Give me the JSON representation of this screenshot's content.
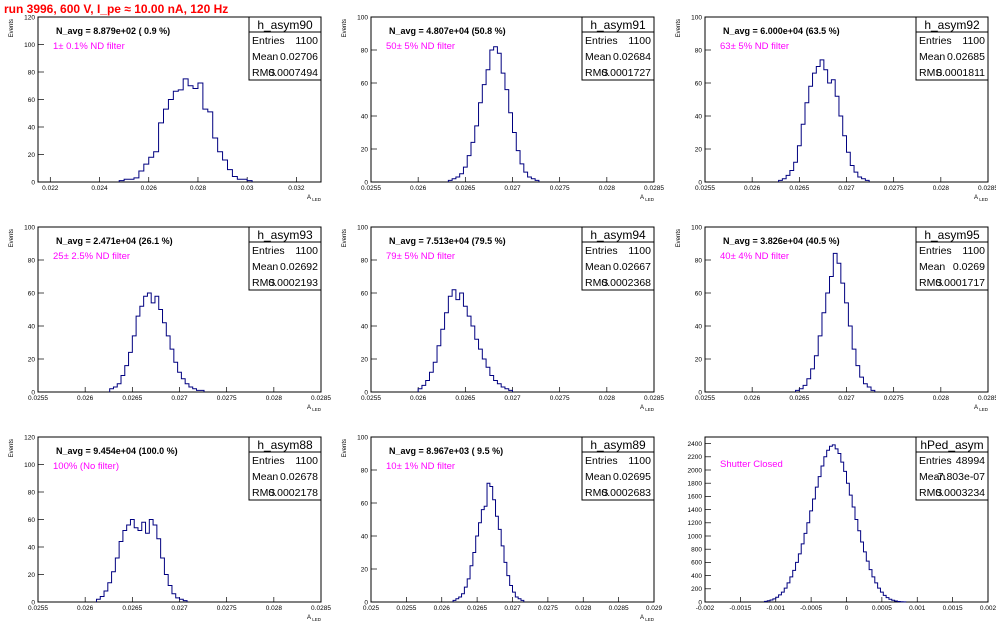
{
  "page": {
    "title": "run 3996,   600 V, I_pe ≈ 10.00 nA, 120 Hz"
  },
  "stat_labels": {
    "entries": "Entries",
    "mean": "Mean",
    "rms": "RMS"
  },
  "colors": {
    "histogram": "#000080",
    "annotation": "#ff00ff",
    "title": "#ff0000",
    "frame": "#000000"
  },
  "chart_data": [
    {
      "type": "bar",
      "name": "h_asym90",
      "title": "h_asym90",
      "entries": "1100",
      "mean": "0.02706",
      "rms": "0.0007494",
      "n_avg": "N_avg = 8.879e+02 ( 0.9 %)",
      "annotation": "1± 0.1% ND filter",
      "xlabel": "A_LED",
      "ylabel": "Events",
      "xlim": [
        0.0215,
        0.033
      ],
      "ylim": [
        0,
        120
      ],
      "xticks": [
        0.022,
        0.024,
        0.026,
        0.028,
        0.03,
        0.032
      ],
      "xtick_labels": [
        "0.022",
        "0.024",
        "0.026",
        "0.028",
        "0.03",
        "0.032"
      ],
      "yticks": [
        0,
        20,
        40,
        60,
        80,
        100,
        120
      ],
      "ytick_labels": [
        "0",
        "20",
        "40",
        "60",
        "80",
        "100",
        "120"
      ],
      "bin_start": 0.0248,
      "bin_width": 0.0002,
      "values": [
        1,
        2,
        2,
        3,
        8,
        13,
        18,
        22,
        43,
        53,
        60,
        66,
        67,
        75,
        70,
        68,
        72,
        53,
        51,
        32,
        22,
        16,
        9,
        4,
        2,
        2,
        1
      ]
    },
    {
      "type": "bar",
      "name": "h_asym91",
      "title": "h_asym91",
      "entries": "1100",
      "mean": "0.02684",
      "rms": "0.0001727",
      "n_avg": "N_avg = 4.807e+04 (50.8 %)",
      "annotation": "50± 5% ND filter",
      "xlabel": "A_LED",
      "ylabel": "Events",
      "xlim": [
        0.0255,
        0.0285
      ],
      "ylim": [
        0,
        100
      ],
      "xticks": [
        0.0255,
        0.026,
        0.0265,
        0.027,
        0.0275,
        0.028,
        0.0285
      ],
      "xtick_labels": [
        "0.0255",
        "0.026",
        "0.0265",
        "0.027",
        "0.0275",
        "0.028",
        "0.0285"
      ],
      "yticks": [
        0,
        20,
        40,
        60,
        80,
        100
      ],
      "ytick_labels": [
        "0",
        "20",
        "40",
        "60",
        "80",
        "100"
      ],
      "bin_start": 0.02632,
      "bin_width": 4e-05,
      "values": [
        1,
        2,
        3,
        5,
        9,
        16,
        24,
        34,
        48,
        59,
        68,
        80,
        82,
        78,
        66,
        56,
        42,
        30,
        19,
        11,
        6,
        3,
        2,
        1
      ]
    },
    {
      "type": "bar",
      "name": "h_asym92",
      "title": "h_asym92",
      "entries": "1100",
      "mean": "0.02685",
      "rms": "0.0001811",
      "n_avg": "N_avg = 6.000e+04 (63.5 %)",
      "annotation": "63± 5% ND filter",
      "xlabel": "A_LED",
      "ylabel": "Events",
      "xlim": [
        0.0255,
        0.0285
      ],
      "ylim": [
        0,
        100
      ],
      "xticks": [
        0.0255,
        0.026,
        0.0265,
        0.027,
        0.0275,
        0.028,
        0.0285
      ],
      "xtick_labels": [
        "0.0255",
        "0.026",
        "0.0265",
        "0.027",
        "0.0275",
        "0.028",
        "0.0285"
      ],
      "yticks": [
        0,
        20,
        40,
        60,
        80,
        100
      ],
      "ytick_labels": [
        "0",
        "20",
        "40",
        "60",
        "80",
        "100"
      ],
      "bin_start": 0.02628,
      "bin_width": 4e-05,
      "values": [
        1,
        2,
        4,
        7,
        12,
        22,
        35,
        48,
        58,
        66,
        70,
        74,
        68,
        60,
        62,
        52,
        40,
        28,
        18,
        10,
        6,
        3,
        2,
        1
      ]
    },
    {
      "type": "bar",
      "name": "h_asym93",
      "title": "h_asym93",
      "entries": "1100",
      "mean": "0.02692",
      "rms": "0.0002193",
      "n_avg": "N_avg = 2.471e+04 (26.1 %)",
      "annotation": "25± 2.5% ND filter",
      "xlabel": "A_LED",
      "ylabel": "Events",
      "xlim": [
        0.0255,
        0.0285
      ],
      "ylim": [
        0,
        100
      ],
      "xticks": [
        0.0255,
        0.026,
        0.0265,
        0.027,
        0.0275,
        0.028,
        0.0285
      ],
      "xtick_labels": [
        "0.0255",
        "0.026",
        "0.0265",
        "0.027",
        "0.0275",
        "0.028",
        "0.0285"
      ],
      "yticks": [
        0,
        20,
        40,
        60,
        80,
        100
      ],
      "ytick_labels": [
        "0",
        "20",
        "40",
        "60",
        "80",
        "100"
      ],
      "bin_start": 0.02626,
      "bin_width": 4e-05,
      "values": [
        2,
        3,
        5,
        10,
        16,
        24,
        34,
        46,
        52,
        58,
        60,
        54,
        58,
        50,
        42,
        34,
        26,
        18,
        12,
        8,
        5,
        3,
        2,
        1,
        1
      ]
    },
    {
      "type": "bar",
      "name": "h_asym94",
      "title": "h_asym94",
      "entries": "1100",
      "mean": "0.02667",
      "rms": "0.0002368",
      "n_avg": "N_avg = 7.513e+04 (79.5 %)",
      "annotation": "79± 5% ND filter",
      "xlabel": "A_LED",
      "ylabel": "Events",
      "xlim": [
        0.0255,
        0.0285
      ],
      "ylim": [
        0,
        100
      ],
      "xticks": [
        0.0255,
        0.026,
        0.0265,
        0.027,
        0.0275,
        0.028,
        0.0285
      ],
      "xtick_labels": [
        "0.0255",
        "0.026",
        "0.0265",
        "0.027",
        "0.0275",
        "0.028",
        "0.0285"
      ],
      "yticks": [
        0,
        20,
        40,
        60,
        80,
        100
      ],
      "ytick_labels": [
        "0",
        "20",
        "40",
        "60",
        "80",
        "100"
      ],
      "bin_start": 0.026,
      "bin_width": 4e-05,
      "values": [
        2,
        4,
        7,
        12,
        18,
        28,
        38,
        48,
        58,
        62,
        56,
        60,
        52,
        46,
        40,
        32,
        26,
        20,
        15,
        10,
        7,
        5,
        3,
        2,
        1
      ]
    },
    {
      "type": "bar",
      "name": "h_asym95",
      "title": "h_asym95",
      "entries": "1100",
      "mean": "0.0269",
      "rms": "0.0001717",
      "n_avg": "N_avg = 3.826e+04 (40.5 %)",
      "annotation": "40± 4% ND filter",
      "xlabel": "A_LED",
      "ylabel": "Events",
      "xlim": [
        0.0255,
        0.0285
      ],
      "ylim": [
        0,
        100
      ],
      "xticks": [
        0.0255,
        0.026,
        0.0265,
        0.027,
        0.0275,
        0.028,
        0.0285
      ],
      "xtick_labels": [
        "0.0255",
        "0.026",
        "0.0265",
        "0.027",
        "0.0275",
        "0.028",
        "0.0285"
      ],
      "yticks": [
        0,
        20,
        40,
        60,
        80,
        100
      ],
      "ytick_labels": [
        "0",
        "20",
        "40",
        "60",
        "80",
        "100"
      ],
      "bin_start": 0.02646,
      "bin_width": 4e-05,
      "values": [
        1,
        2,
        4,
        8,
        14,
        22,
        34,
        48,
        60,
        70,
        84,
        78,
        66,
        54,
        40,
        26,
        16,
        9,
        5,
        3,
        1
      ]
    },
    {
      "type": "bar",
      "name": "h_asym88",
      "title": "h_asym88",
      "entries": "1100",
      "mean": "0.02678",
      "rms": "0.0002178",
      "n_avg": "N_avg = 9.454e+04 (100.0 %)",
      "annotation": "100% (No filter)",
      "xlabel": "A_LED",
      "ylabel": "Events",
      "xlim": [
        0.0255,
        0.0285
      ],
      "ylim": [
        0,
        120
      ],
      "xticks": [
        0.0255,
        0.026,
        0.0265,
        0.027,
        0.0275,
        0.028,
        0.0285
      ],
      "xtick_labels": [
        "0.0255",
        "0.026",
        "0.0265",
        "0.027",
        "0.0275",
        "0.028",
        "0.0285"
      ],
      "yticks": [
        0,
        20,
        40,
        60,
        80,
        100,
        120
      ],
      "ytick_labels": [
        "0",
        "20",
        "40",
        "60",
        "80",
        "100",
        "120"
      ],
      "bin_start": 0.02612,
      "bin_width": 4e-05,
      "values": [
        2,
        4,
        8,
        14,
        22,
        32,
        44,
        52,
        56,
        60,
        54,
        52,
        58,
        50,
        60,
        56,
        46,
        32,
        20,
        12,
        6,
        3,
        2,
        1
      ]
    },
    {
      "type": "bar",
      "name": "h_asym89",
      "title": "h_asym89",
      "entries": "1100",
      "mean": "0.02695",
      "rms": "0.0002683",
      "n_avg": "N_avg = 8.967e+03 ( 9.5 %)",
      "annotation": "10± 1% ND filter",
      "xlabel": "A_LED",
      "ylabel": "Events",
      "xlim": [
        0.025,
        0.029
      ],
      "ylim": [
        0,
        100
      ],
      "xticks": [
        0.025,
        0.0255,
        0.026,
        0.0265,
        0.027,
        0.0275,
        0.028,
        0.0285,
        0.029
      ],
      "xtick_labels": [
        "0.025",
        "0.0255",
        "0.026",
        "0.0265",
        "0.027",
        "0.0275",
        "0.028",
        "0.0285",
        "0.029"
      ],
      "yticks": [
        0,
        20,
        40,
        60,
        80,
        100
      ],
      "ytick_labels": [
        "0",
        "20",
        "40",
        "60",
        "80",
        "100"
      ],
      "bin_start": 0.02616,
      "bin_width": 4e-05,
      "values": [
        1,
        2,
        3,
        5,
        9,
        14,
        22,
        30,
        40,
        48,
        56,
        58,
        72,
        70,
        62,
        52,
        44,
        34,
        24,
        16,
        10,
        6,
        3,
        2,
        1
      ]
    },
    {
      "type": "bar",
      "name": "hPed_asym",
      "title": "hPed_asym",
      "entries": "48994",
      "mean": "-7.803e-07",
      "rms": "0.0003234",
      "n_avg": "",
      "annotation": "Shutter Closed",
      "xlabel": "",
      "ylabel": "",
      "xlim": [
        -0.002,
        0.002
      ],
      "ylim": [
        0,
        2500
      ],
      "xticks": [
        -0.002,
        -0.0015,
        -0.001,
        -0.0005,
        0,
        0.0005,
        0.001,
        0.0015,
        0.002
      ],
      "xtick_labels": [
        "-0.002",
        "-0.0015",
        "-0.001",
        "-0.0005",
        "0",
        "0.0005",
        "0.001",
        "0.0015",
        "0.002"
      ],
      "yticks": [
        0,
        200,
        400,
        600,
        800,
        1000,
        1200,
        1400,
        1600,
        1800,
        2000,
        2200,
        2400
      ],
      "ytick_labels": [
        "0",
        "200",
        "400",
        "600",
        "800",
        "1000",
        "1200",
        "1400",
        "1600",
        "1800",
        "2000",
        "2200",
        "2400"
      ],
      "bin_start": -0.00116,
      "bin_width": 4e-05,
      "values": [
        10,
        18,
        30,
        48,
        72,
        108,
        150,
        210,
        290,
        380,
        480,
        600,
        730,
        880,
        1040,
        1200,
        1380,
        1560,
        1740,
        1900,
        2060,
        2200,
        2300,
        2360,
        2380,
        2320,
        2250,
        2120,
        1980,
        1800,
        1620,
        1440,
        1250,
        1080,
        910,
        760,
        620,
        490,
        380,
        290,
        210,
        150,
        100,
        66,
        42,
        26,
        15,
        8,
        4,
        2
      ]
    }
  ]
}
